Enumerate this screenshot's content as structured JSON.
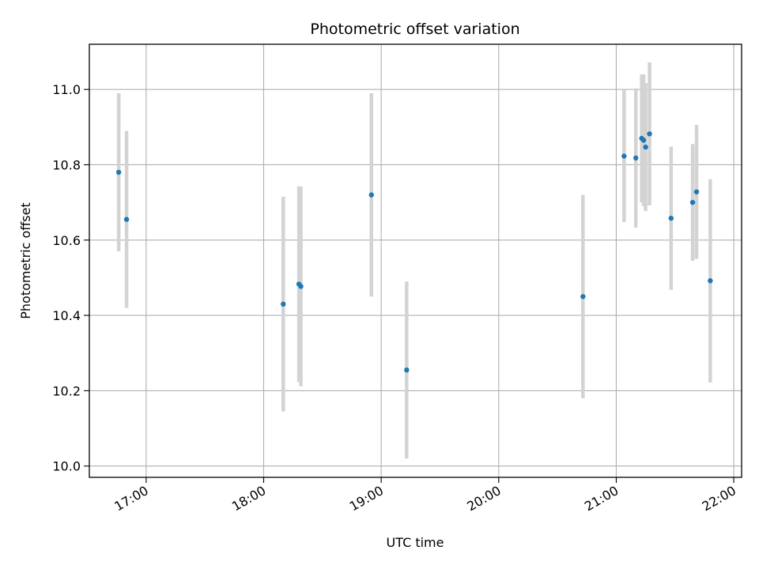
{
  "chart_data": {
    "type": "scatter",
    "title": "Photometric offset variation",
    "xlabel": "UTC time",
    "ylabel": "Photometric offset",
    "x_ticks": [
      "17:00",
      "18:00",
      "19:00",
      "20:00",
      "21:00",
      "22:00"
    ],
    "y_ticks": [
      "10.0",
      "10.2",
      "10.4",
      "10.6",
      "10.8",
      "11.0"
    ],
    "xlim": [
      "16:31",
      "22:04"
    ],
    "ylim": [
      9.97,
      11.12
    ],
    "grid": true,
    "colors": {
      "points": "#1f77b4",
      "errorbars": "#d3d3d3",
      "grid": "#b0b0b0"
    },
    "series": [
      {
        "points": [
          {
            "t": "16:46",
            "y": 10.78,
            "err": 0.21
          },
          {
            "t": "16:50",
            "y": 10.655,
            "err": 0.235
          },
          {
            "t": "18:10",
            "y": 10.43,
            "err": 0.285
          },
          {
            "t": "18:18",
            "y": 10.483,
            "err": 0.26
          },
          {
            "t": "18:19",
            "y": 10.477,
            "err": 0.265
          },
          {
            "t": "18:55",
            "y": 10.72,
            "err": 0.27
          },
          {
            "t": "19:13",
            "y": 10.255,
            "err": 0.235
          },
          {
            "t": "20:43",
            "y": 10.45,
            "err": 0.27
          },
          {
            "t": "21:04",
            "y": 10.823,
            "err": 0.175
          },
          {
            "t": "21:10",
            "y": 10.818,
            "err": 0.185
          },
          {
            "t": "21:13",
            "y": 10.87,
            "err": 0.17
          },
          {
            "t": "21:14",
            "y": 10.865,
            "err": 0.175
          },
          {
            "t": "21:15",
            "y": 10.847,
            "err": 0.17
          },
          {
            "t": "21:17",
            "y": 10.882,
            "err": 0.19
          },
          {
            "t": "21:28",
            "y": 10.658,
            "err": 0.19
          },
          {
            "t": "21:39",
            "y": 10.7,
            "err": 0.155
          },
          {
            "t": "21:41",
            "y": 10.728,
            "err": 0.178
          },
          {
            "t": "21:48",
            "y": 10.492,
            "err": 0.27
          }
        ]
      }
    ]
  }
}
